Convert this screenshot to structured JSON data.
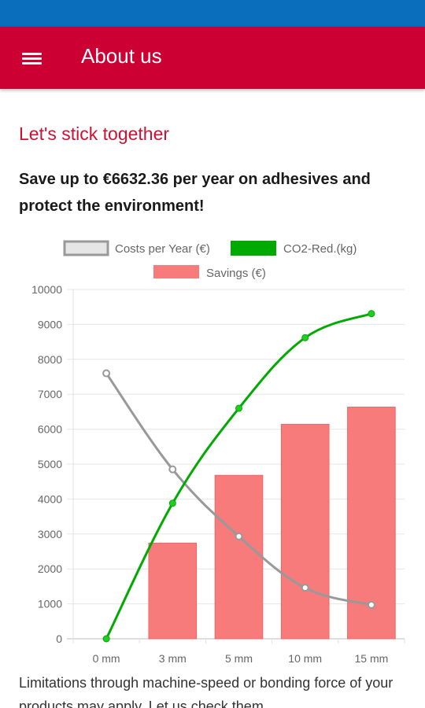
{
  "app_bar": {
    "title": "About us",
    "menu_icon": "hamburger-menu-icon"
  },
  "colors": {
    "status_bar": "#0a6ebd",
    "app_bar": "#cc0033",
    "accent_title": "#cc1133",
    "costs_line": "#999999",
    "co2_line": "#00aa00",
    "savings_bar": "#f77b7b"
  },
  "content": {
    "section_title": "Let's stick together",
    "headline": "Save up to €6632.36 per year on adhesives and protect the environment!",
    "footer": "Limitations through machine-speed or bonding force of your products may apply. Let us check them."
  },
  "chart_data": {
    "type": "bar",
    "categories": [
      "0 mm",
      "3 mm",
      "5 mm",
      "10 mm",
      "15 mm"
    ],
    "ylim": [
      0,
      10000
    ],
    "yticks": [
      "0",
      "1000",
      "2000",
      "3000",
      "4000",
      "5000",
      "6000",
      "7000",
      "8000",
      "9000",
      "10000"
    ],
    "grid": true,
    "legend_position": "top",
    "series": [
      {
        "name": "Costs per Year (€)",
        "kind": "line",
        "values": [
          7600,
          4850,
          2930,
          1460,
          970
        ]
      },
      {
        "name": "CO2-Red.(kg)",
        "kind": "line",
        "values": [
          0,
          3880,
          6600,
          8620,
          9310
        ]
      },
      {
        "name": "Savings (€)",
        "kind": "bar",
        "values": [
          0,
          2740,
          4680,
          6140,
          6632.36
        ]
      }
    ]
  }
}
